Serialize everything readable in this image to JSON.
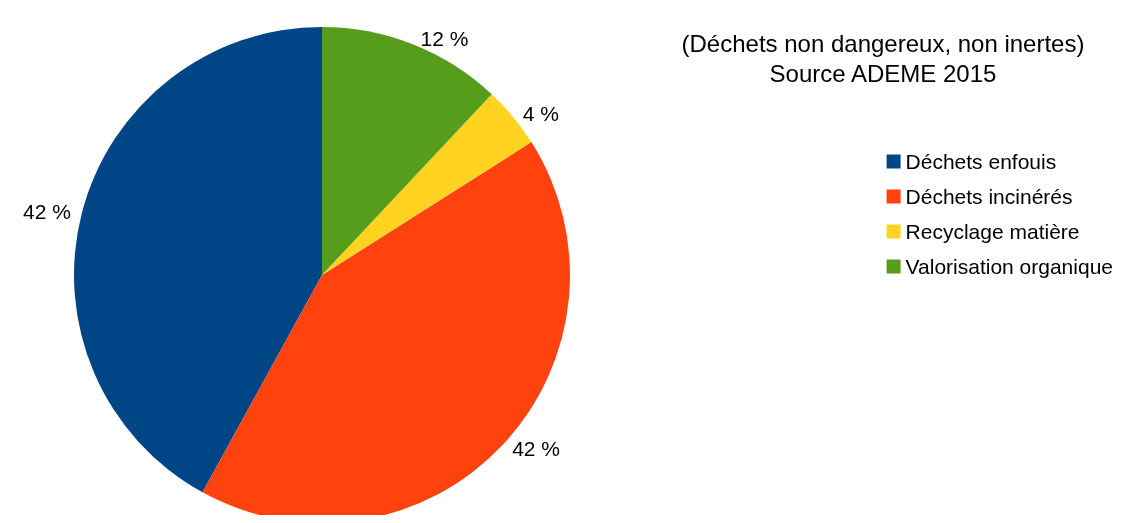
{
  "chart_data": {
    "type": "pie",
    "title": "(Déchets non dangereux, non inertes)",
    "subtitle": "Source ADEME 2015",
    "categories": [
      "Déchets enfouis",
      "Déchets incinérés",
      "Recyclage matière",
      "Valorisation organique"
    ],
    "values": [
      42,
      42,
      4,
      12
    ],
    "colors": [
      "#004586",
      "#ff420e",
      "#ffd320",
      "#579d1c"
    ],
    "value_labels": [
      "42 %",
      "42 %",
      "4 %",
      "12 %"
    ],
    "legend": "right"
  }
}
